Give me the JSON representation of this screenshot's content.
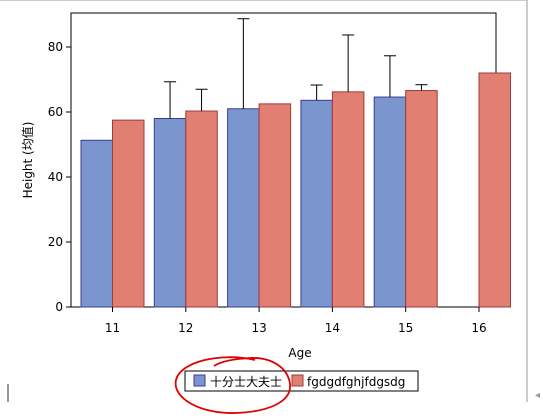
{
  "chart_data": {
    "type": "bar",
    "title": "",
    "xlabel": "Age",
    "ylabel": "Height (均值)",
    "ylim": [
      0,
      90
    ],
    "yticks": [
      0,
      20,
      40,
      60,
      80
    ],
    "grid": false,
    "legend_position": "bottom",
    "categories": [
      "11",
      "12",
      "13",
      "14",
      "15",
      "16"
    ],
    "series": [
      {
        "name": "十分士大夫士",
        "color": "#7b95cf",
        "stroke": "#3b3f8f",
        "values": [
          51.3,
          58.0,
          61.0,
          63.6,
          64.6,
          null
        ],
        "error_upper": [
          null,
          69.3,
          88.7,
          68.3,
          77.3,
          null
        ]
      },
      {
        "name": "fgdgdfghjfdgsdg",
        "color": "#e07f72",
        "stroke": "#a13a3a",
        "values": [
          57.5,
          60.3,
          62.5,
          66.2,
          66.6,
          72.0
        ],
        "error_upper": [
          null,
          67.0,
          null,
          83.7,
          68.4,
          null
        ]
      }
    ]
  },
  "annotation": {
    "type": "hand-drawn-ellipse",
    "color": "#e00000",
    "target": "legend-item-1"
  }
}
